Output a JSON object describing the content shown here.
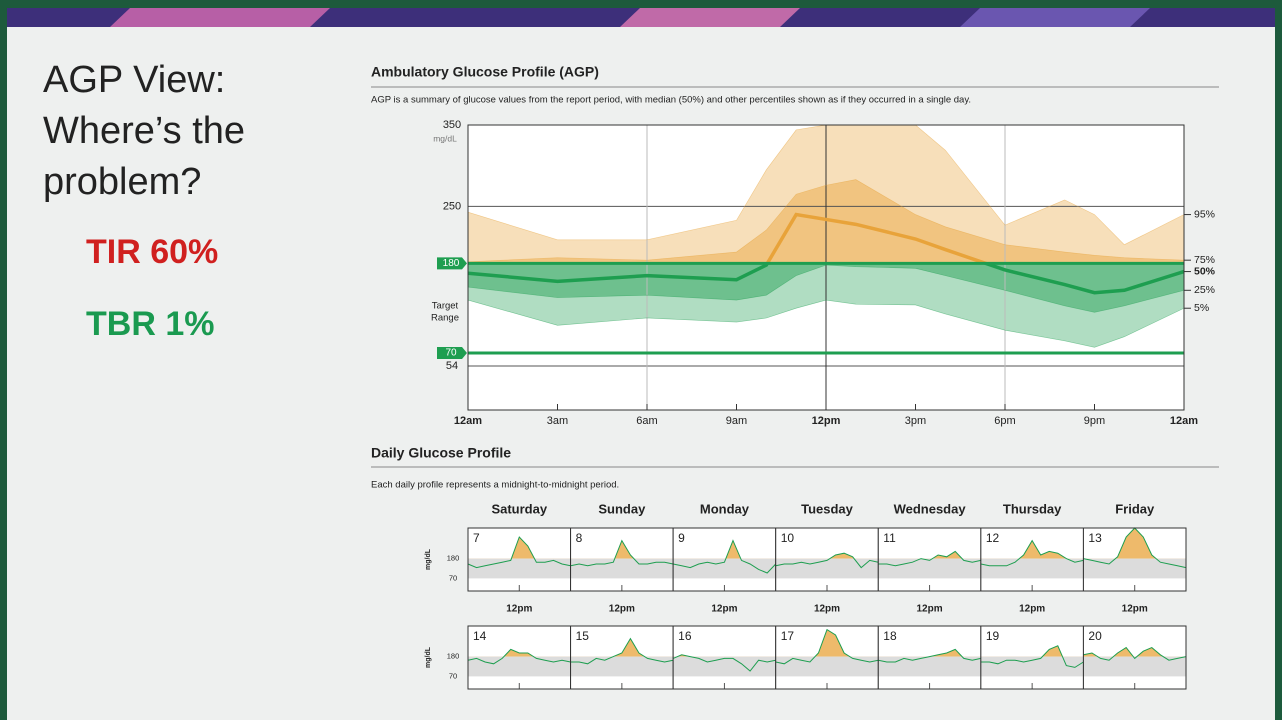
{
  "slide": {
    "title_lines": [
      "AGP View:",
      "Where’s the",
      "problem?"
    ],
    "tir": "TIR 60%",
    "tbr": "TBR 1%"
  },
  "chart_data": [
    {
      "type": "agp",
      "title": "Ambulatory Glucose Profile (AGP)",
      "subtitle": "AGP is a summary of glucose values from the report period, with median (50%) and other percentiles shown as if they occurred in a single day.",
      "y_unit": "mg/dL",
      "target_label": [
        "Target",
        "Range"
      ],
      "target_range": [
        70,
        180
      ],
      "high_color": "#e8a33a",
      "in_range_color": "#1e9e50",
      "x": [
        0,
        3,
        6,
        9,
        10,
        11,
        12,
        13,
        15,
        16,
        18,
        20,
        21,
        22,
        24
      ],
      "xlim": [
        0,
        24
      ],
      "xticks": [
        {
          "value": 0,
          "label": "12am"
        },
        {
          "value": 3,
          "label": "3am"
        },
        {
          "value": 6,
          "label": "6am"
        },
        {
          "value": 9,
          "label": "9am"
        },
        {
          "value": 12,
          "label": "12pm"
        },
        {
          "value": 15,
          "label": "3pm"
        },
        {
          "value": 18,
          "label": "6pm"
        },
        {
          "value": 21,
          "label": "9pm"
        },
        {
          "value": 24,
          "label": "12am"
        }
      ],
      "ylim": [
        0,
        350
      ],
      "yticks": [
        54,
        250,
        350
      ],
      "series": [
        {
          "name": "5%",
          "values": [
            135,
            104,
            113,
            108,
            113,
            125,
            135,
            130,
            129,
            118,
            98,
            85,
            77,
            90,
            125
          ]
        },
        {
          "name": "25%",
          "values": [
            151,
            138,
            141,
            135,
            141,
            165,
            178,
            176,
            174,
            165,
            147,
            128,
            120,
            128,
            147
          ]
        },
        {
          "name": "50%",
          "values": [
            168,
            158,
            165,
            160,
            178,
            240,
            234,
            228,
            210,
            197,
            172,
            154,
            144,
            147,
            170
          ]
        },
        {
          "name": "75%",
          "values": [
            182,
            187,
            184,
            194,
            221,
            265,
            276,
            283,
            240,
            225,
            203,
            194,
            190,
            187,
            184
          ]
        },
        {
          "name": "95%",
          "values": [
            243,
            209,
            209,
            233,
            295,
            344,
            350,
            350,
            350,
            319,
            227,
            258,
            240,
            203,
            240
          ]
        }
      ]
    },
    {
      "type": "daily",
      "title": "Daily Glucose Profile",
      "subtitle": "Each daily profile represents a midnight-to-midnight period.",
      "weekdays": [
        "Saturday",
        "Sunday",
        "Monday",
        "Tuesday",
        "Wednesday",
        "Thursday",
        "Friday"
      ],
      "mid_label": "12pm",
      "y_unit": "mg/dL",
      "ylim": [
        0,
        350
      ],
      "yticks": [
        70,
        180
      ],
      "target_range": [
        70,
        180
      ],
      "x": [
        0,
        2,
        4,
        6,
        8,
        10,
        12,
        14,
        16,
        18,
        20,
        22,
        24
      ],
      "xlim": [
        0,
        24
      ],
      "days": [
        {
          "label": "7",
          "values": [
            150,
            130,
            140,
            150,
            160,
            170,
            300,
            250,
            160,
            160,
            170,
            150,
            140
          ]
        },
        {
          "label": "8",
          "values": [
            140,
            150,
            140,
            150,
            150,
            160,
            280,
            200,
            150,
            150,
            160,
            160,
            150
          ]
        },
        {
          "label": "9",
          "values": [
            150,
            140,
            130,
            150,
            160,
            150,
            160,
            280,
            170,
            150,
            120,
            100,
            150
          ]
        },
        {
          "label": "10",
          "values": [
            140,
            150,
            150,
            160,
            150,
            160,
            170,
            200,
            210,
            190,
            130,
            170,
            160
          ]
        },
        {
          "label": "11",
          "values": [
            150,
            150,
            140,
            150,
            160,
            180,
            170,
            200,
            190,
            220,
            170,
            160,
            170
          ]
        },
        {
          "label": "12",
          "values": [
            150,
            140,
            140,
            140,
            160,
            200,
            280,
            200,
            220,
            210,
            180,
            160,
            170
          ]
        },
        {
          "label": "13",
          "values": [
            180,
            170,
            160,
            150,
            190,
            300,
            350,
            300,
            200,
            160,
            150,
            140,
            130
          ]
        },
        {
          "label": "14",
          "values": [
            160,
            170,
            150,
            140,
            170,
            220,
            200,
            200,
            170,
            160,
            150,
            160,
            150
          ]
        },
        {
          "label": "15",
          "values": [
            150,
            150,
            140,
            170,
            160,
            180,
            200,
            280,
            200,
            170,
            160,
            150,
            160
          ]
        },
        {
          "label": "16",
          "values": [
            170,
            190,
            180,
            170,
            150,
            160,
            170,
            170,
            140,
            100,
            160,
            150,
            160
          ]
        },
        {
          "label": "17",
          "values": [
            150,
            140,
            170,
            160,
            150,
            200,
            330,
            300,
            200,
            170,
            160,
            150,
            160
          ]
        },
        {
          "label": "18",
          "values": [
            160,
            150,
            150,
            170,
            160,
            170,
            180,
            190,
            200,
            220,
            170,
            160,
            170
          ]
        },
        {
          "label": "19",
          "values": [
            150,
            150,
            140,
            160,
            160,
            150,
            160,
            170,
            220,
            240,
            130,
            120,
            150
          ]
        },
        {
          "label": "20",
          "values": [
            190,
            200,
            170,
            160,
            200,
            230,
            170,
            210,
            230,
            190,
            160,
            170,
            180
          ]
        }
      ]
    }
  ]
}
